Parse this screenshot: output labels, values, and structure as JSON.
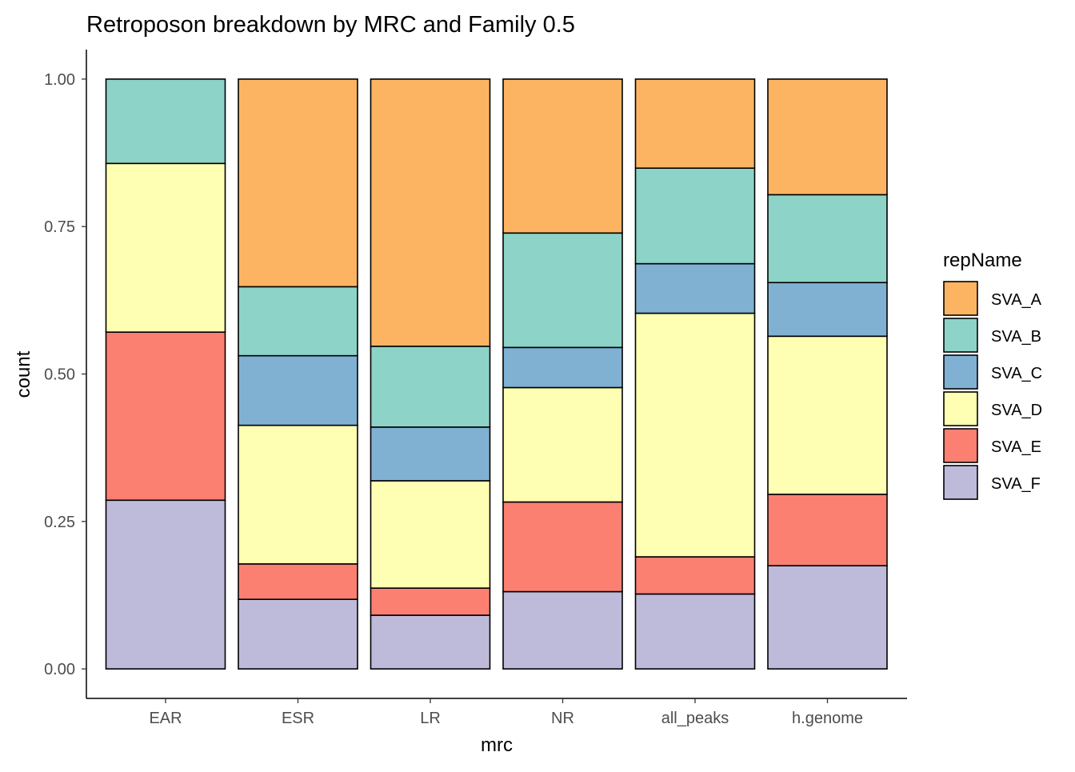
{
  "chart_data": {
    "type": "bar",
    "stacked": "proportion",
    "title": "Retroposon breakdown by MRC and Family 0.5",
    "xlabel": "mrc",
    "ylabel": "count",
    "ylim": [
      -0.05,
      1.05
    ],
    "yticks": [
      "0.00",
      "0.25",
      "0.50",
      "0.75",
      "1.00"
    ],
    "ytick_values": [
      0,
      0.25,
      0.5,
      0.75,
      1.0
    ],
    "categories": [
      "EAR",
      "ESR",
      "LR",
      "NR",
      "all_peaks",
      "h.genome"
    ],
    "legend_title": "repName",
    "legend_position": "right",
    "grid": false,
    "stack_order_bottom_to_top": [
      "SVA_F",
      "SVA_E",
      "SVA_D",
      "SVA_C",
      "SVA_B",
      "SVA_A"
    ],
    "series": [
      {
        "name": "SVA_A",
        "color": "#FDB462",
        "values": [
          0.0,
          0.352,
          0.453,
          0.261,
          0.151,
          0.196
        ]
      },
      {
        "name": "SVA_B",
        "color": "#8DD3C7",
        "values": [
          0.143,
          0.117,
          0.137,
          0.194,
          0.162,
          0.149
        ]
      },
      {
        "name": "SVA_C",
        "color": "#80B1D3",
        "values": [
          0.0,
          0.118,
          0.091,
          0.068,
          0.084,
          0.091
        ]
      },
      {
        "name": "SVA_D",
        "color": "#FFFFB3",
        "values": [
          0.286,
          0.235,
          0.182,
          0.194,
          0.413,
          0.268
        ]
      },
      {
        "name": "SVA_E",
        "color": "#FB8072",
        "values": [
          0.285,
          0.06,
          0.046,
          0.152,
          0.063,
          0.121
        ]
      },
      {
        "name": "SVA_F",
        "color": "#BEBADA",
        "values": [
          0.286,
          0.118,
          0.091,
          0.131,
          0.127,
          0.175
        ]
      }
    ]
  }
}
